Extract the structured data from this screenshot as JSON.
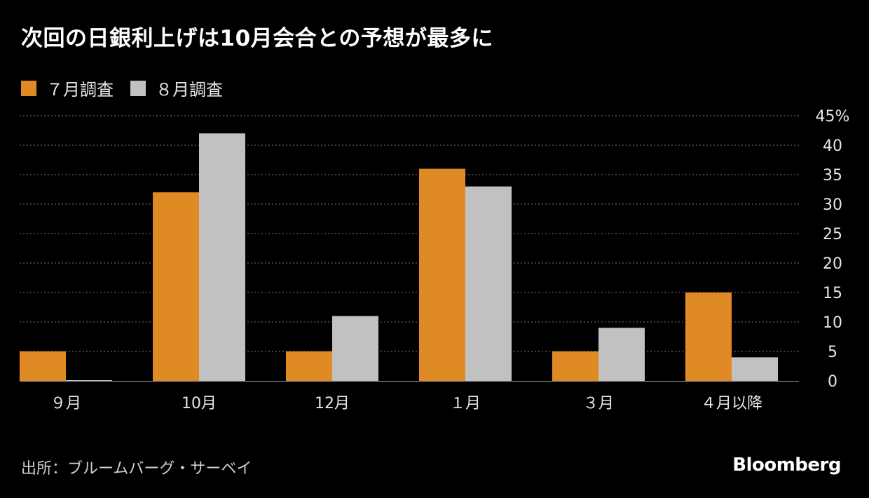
{
  "title": "次回の日銀利上げは10月会合との予想が最多に",
  "source": "出所：ブルームバーグ・サーベイ",
  "brand": "Bloomberg",
  "colors": {
    "background": "#000000",
    "series_july": "#e08a25",
    "series_august": "#c1c1c1",
    "grid": "#7a7a7a",
    "baseline": "#9a9a9a"
  },
  "chart_data": {
    "type": "bar",
    "title": "次回の日銀利上げは10月会合との予想が最多に",
    "xlabel": "",
    "ylabel": "",
    "ylim": [
      0,
      45
    ],
    "y_ticks": [
      0,
      5,
      10,
      15,
      20,
      25,
      30,
      35,
      40,
      45
    ],
    "y_tick_labels": [
      "0",
      "5",
      "10",
      "15",
      "20",
      "25",
      "30",
      "35",
      "40",
      "45%"
    ],
    "grid": true,
    "legend_position": "top-left",
    "categories": [
      "９月",
      "10月",
      "12月",
      "１月",
      "３月",
      "４月以降"
    ],
    "series": [
      {
        "name": "７月調査",
        "color": "#e08a25",
        "values": [
          5,
          32,
          5,
          36,
          5,
          15
        ]
      },
      {
        "name": "８月調査",
        "color": "#c1c1c1",
        "values": [
          0,
          42,
          11,
          33,
          9,
          4
        ]
      }
    ]
  }
}
